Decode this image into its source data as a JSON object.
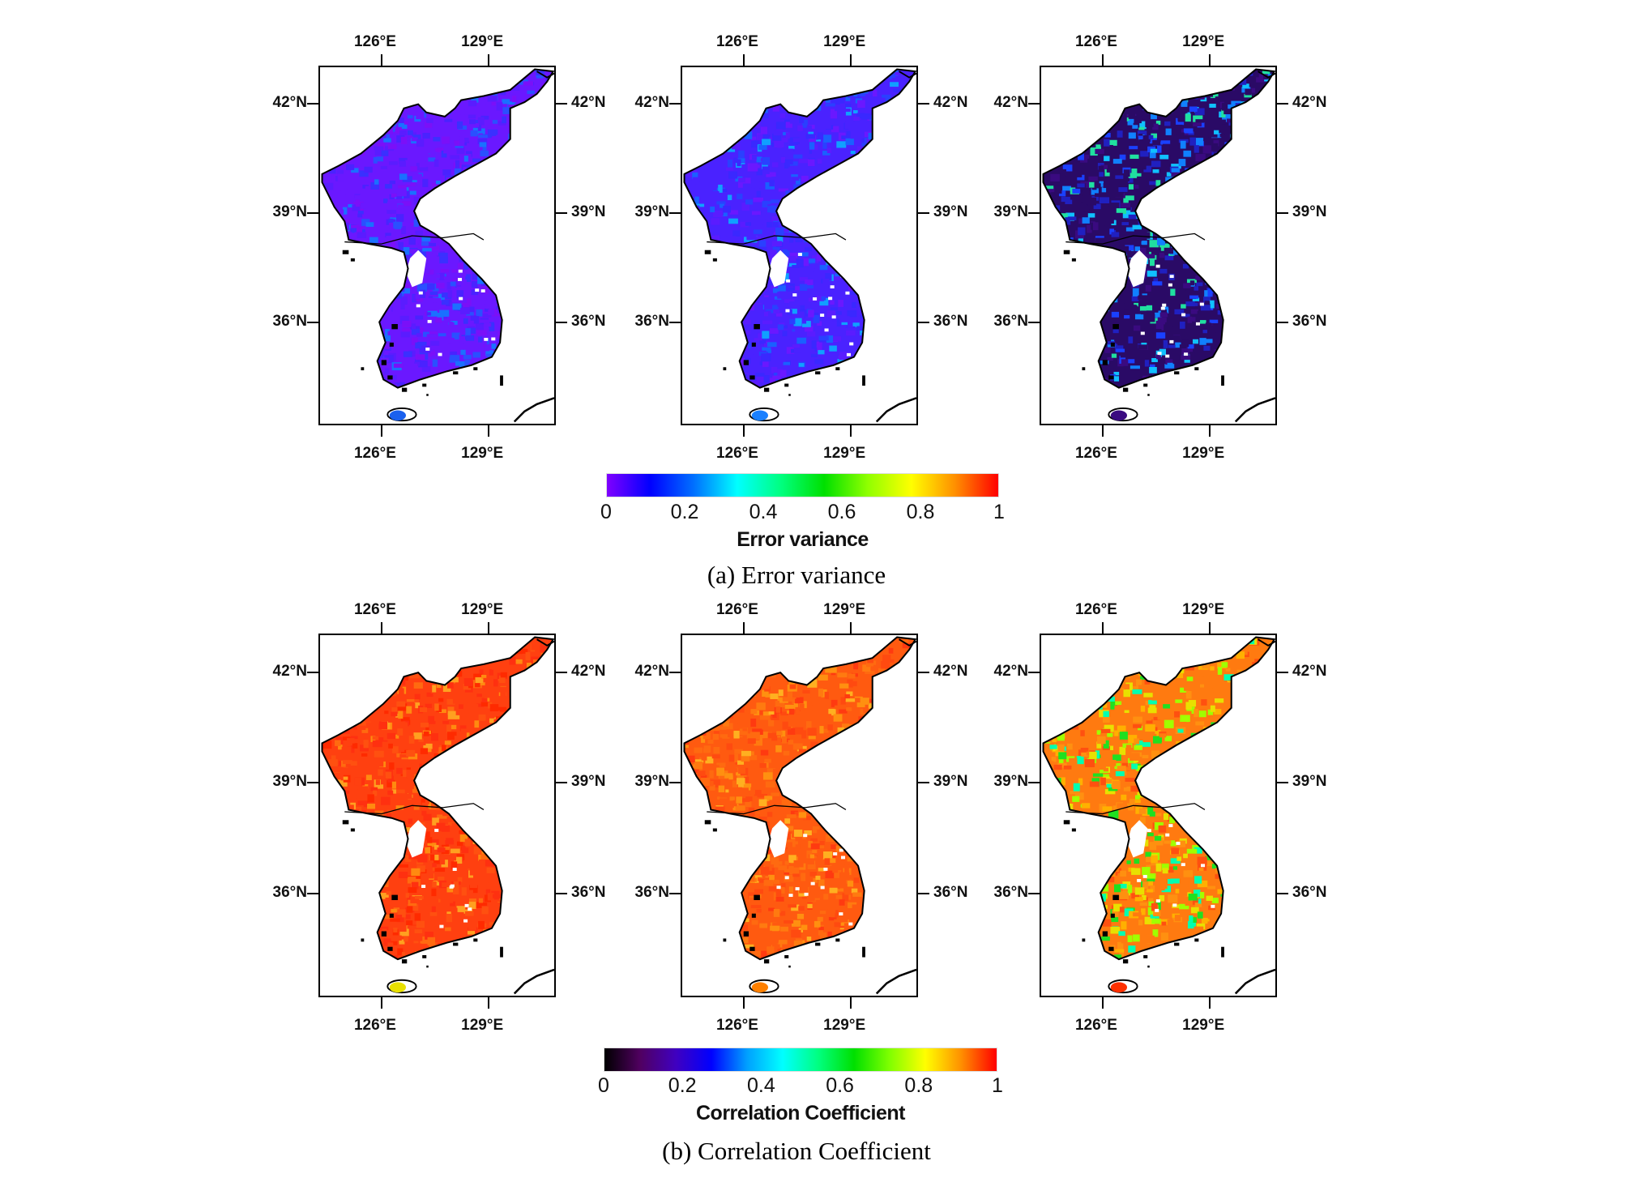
{
  "map_extent": {
    "lon": [
      124.23,
      130.88
    ],
    "lat": [
      33.18,
      43.05
    ]
  },
  "lon_ticks": [
    {
      "value": 126,
      "label": "126°E"
    },
    {
      "value": 129,
      "label": "129°E"
    }
  ],
  "lat_ticks": [
    {
      "value": 42,
      "label": "42°N"
    },
    {
      "value": 39,
      "label": "39°N"
    },
    {
      "value": 36,
      "label": "36°N"
    }
  ],
  "rows": [
    {
      "id": "error-variance",
      "panels": [
        {
          "palette": [
            "#6a18ff",
            "#5a1cff",
            "#4a22ff",
            "#7a10f8",
            "#3a30ff",
            "#2a50ff",
            "#1a70ff"
          ],
          "jeju": "#1a60ee"
        },
        {
          "palette": [
            "#4a22ff",
            "#3a28ff",
            "#5a1cff",
            "#2a40ff",
            "#6a18ff",
            "#1a60ff",
            "#10a0ff"
          ],
          "jeju": "#1a80ff"
        },
        {
          "palette": [
            "#2a0a66",
            "#3a0a80",
            "#2020c0",
            "#1a40ff",
            "#1080ff",
            "#10c0ff",
            "#20e0a0"
          ],
          "jeju": "#3a0a80"
        }
      ],
      "colorbar": {
        "stops": [
          "#8000ff",
          "#0000ff",
          "#0070ff",
          "#00ffff",
          "#00ff80",
          "#00e000",
          "#90ff00",
          "#ffff00",
          "#ff9000",
          "#ff0000"
        ],
        "ticks": [
          "0",
          "0.2",
          "0.4",
          "0.6",
          "0.8",
          "1"
        ],
        "title": "Error variance"
      },
      "caption": "(a) Error variance"
    },
    {
      "id": "correlation-coefficient",
      "panels": [
        {
          "palette": [
            "#ff4010",
            "#ff3010",
            "#ff5010",
            "#ff2a00",
            "#ff6a10",
            "#ff8a10",
            "#ffa020"
          ],
          "jeju": "#e8e000"
        },
        {
          "palette": [
            "#ff5a10",
            "#ff6a10",
            "#ff4a10",
            "#ff7a10",
            "#ff3a10",
            "#ff9010",
            "#ffb020"
          ],
          "jeju": "#ff8000"
        },
        {
          "palette": [
            "#ff7a10",
            "#ff9010",
            "#ffb000",
            "#ff5010",
            "#e8e000",
            "#a0ff00",
            "#20e020",
            "#00ffb0"
          ],
          "jeju": "#ff3000"
        }
      ],
      "colorbar": {
        "stops": [
          "#000000",
          "#500060",
          "#4000c0",
          "#0000ff",
          "#00a0ff",
          "#00ffff",
          "#00ff80",
          "#00e000",
          "#80ff00",
          "#ffff00",
          "#ff9000",
          "#ff0000"
        ],
        "ticks": [
          "0",
          "0.2",
          "0.4",
          "0.6",
          "0.8",
          "1"
        ],
        "title": "Correlation Coefficient"
      },
      "caption": "(b) Correlation Coefficient"
    }
  ]
}
